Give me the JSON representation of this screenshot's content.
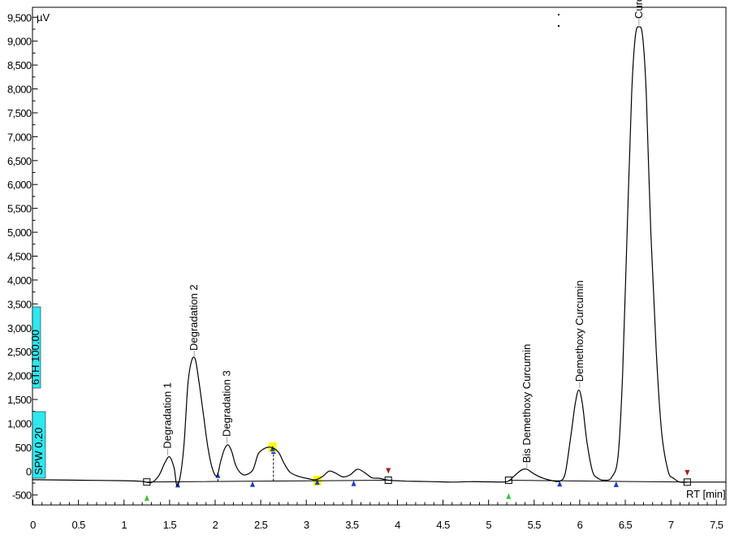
{
  "chart_data": {
    "type": "line",
    "title": "",
    "ylabel": "µV",
    "xlabel": "RT [min]",
    "xlim": [
      0,
      7.6
    ],
    "ylim": [
      -700,
      9700
    ],
    "x_ticks": [
      "0",
      "0.5",
      "1",
      "1.5",
      "2",
      "2.5",
      "3",
      "3.5",
      "4",
      "4.5",
      "5",
      "5.5",
      "6",
      "6.5",
      "7",
      "7.5"
    ],
    "y_ticks": [
      "9,500",
      "9,000",
      "8,500",
      "8,000",
      "7,500",
      "7,000",
      "6,500",
      "6,000",
      "5,500",
      "5,000",
      "4,500",
      "4,000",
      "3,500",
      "3,000",
      "2,500",
      "2,000",
      "1,500",
      "1,000",
      "500",
      "0",
      "-500"
    ],
    "parameter_labels": [
      "6TH 100.00",
      "SPW 0.20"
    ],
    "peaks": [
      {
        "name": "Degradation 1",
        "rt": 1.48,
        "height": 300
      },
      {
        "name": "Degradation 2",
        "rt": 1.77,
        "height": 2350
      },
      {
        "name": "Degradation  3",
        "rt": 2.13,
        "height": 550
      },
      {
        "name": "Bis Demethoxy Curcumin",
        "rt": 5.42,
        "height": 0
      },
      {
        "name": "Demethoxy Curcumin",
        "rt": 6.0,
        "height": 1700
      },
      {
        "name": "Curcumin",
        "rt": 6.65,
        "height": 9300
      }
    ],
    "series": [
      {
        "x": [
          0,
          0.5,
          1.0,
          1.2,
          1.3,
          1.38,
          1.45,
          1.5,
          1.55,
          1.58,
          1.62,
          1.66,
          1.7,
          1.74,
          1.78,
          1.82,
          1.87,
          1.92,
          1.97,
          2.02,
          2.06,
          2.1,
          2.14,
          2.18,
          2.23,
          2.3,
          2.37,
          2.42,
          2.47,
          2.52,
          2.58,
          2.64,
          2.7,
          2.76,
          2.82,
          2.9,
          3.0,
          3.1,
          3.18,
          3.25,
          3.32,
          3.4,
          3.48,
          3.56,
          3.64,
          3.72,
          3.8,
          3.9,
          4.0,
          4.1,
          4.25,
          4.4,
          4.6,
          4.8,
          5.0,
          5.2,
          5.27,
          5.33,
          5.38,
          5.43,
          5.5,
          5.6,
          5.7,
          5.78,
          5.84,
          5.9,
          5.95,
          5.99,
          6.03,
          6.08,
          6.14,
          6.2,
          6.27,
          6.35,
          6.42,
          6.47,
          6.52,
          6.57,
          6.61,
          6.65,
          6.69,
          6.73,
          6.78,
          6.84,
          6.9,
          6.97,
          7.03,
          7.1,
          7.2,
          7.4,
          7.6
        ],
        "y": [
          -180,
          -190,
          -200,
          -215,
          -240,
          -100,
          180,
          300,
          60,
          -300,
          -80,
          600,
          1800,
          2300,
          2350,
          1900,
          1200,
          500,
          50,
          -100,
          200,
          450,
          550,
          420,
          100,
          -70,
          -50,
          50,
          350,
          450,
          500,
          480,
          380,
          150,
          -20,
          -100,
          -150,
          -180,
          -110,
          0,
          -40,
          -120,
          -80,
          40,
          -30,
          -140,
          -150,
          -190,
          -200,
          -210,
          -215,
          -220,
          -230,
          -220,
          -225,
          -220,
          -120,
          -20,
          40,
          30,
          -60,
          -150,
          -200,
          -210,
          -50,
          700,
          1400,
          1700,
          1400,
          600,
          0,
          -150,
          -190,
          -130,
          300,
          2000,
          5000,
          7900,
          9100,
          9300,
          9100,
          7900,
          5000,
          2500,
          800,
          0,
          -150,
          -230,
          -230,
          -230,
          -230
        ]
      }
    ]
  }
}
